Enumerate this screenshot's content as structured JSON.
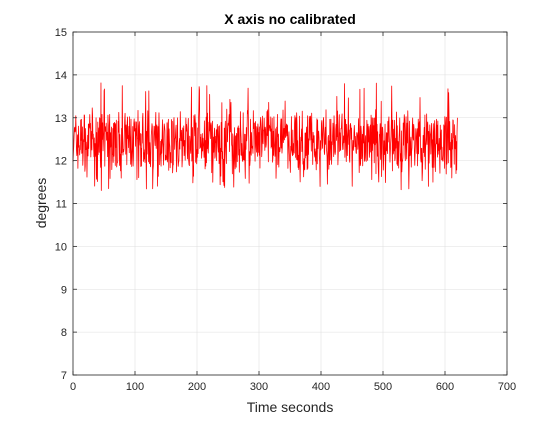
{
  "chart_data": {
    "type": "line",
    "title": "X axis no calibrated",
    "xlabel": "Time seconds",
    "ylabel": "degrees",
    "xlim": [
      0,
      700
    ],
    "ylim": [
      7,
      15
    ],
    "xticks": [
      0,
      100,
      200,
      300,
      400,
      500,
      600,
      700
    ],
    "yticks": [
      7,
      8,
      9,
      10,
      11,
      12,
      13,
      14,
      15
    ],
    "grid": true,
    "legend": "none",
    "series": [
      {
        "color": "#ff0000",
        "x_start": 0,
        "x_end": 620,
        "mean": 12.45,
        "min": 11.3,
        "max": 13.85,
        "x": [
          0,
          10,
          20,
          30,
          40,
          50,
          60,
          70,
          80,
          90,
          100,
          110,
          120,
          130,
          140,
          150,
          160,
          170,
          180,
          190,
          200,
          210,
          220,
          230,
          240,
          250,
          260,
          270,
          280,
          290,
          300,
          310,
          320,
          330,
          340,
          350,
          360,
          370,
          380,
          390,
          400,
          410,
          420,
          430,
          440,
          450,
          460,
          470,
          480,
          490,
          500,
          510,
          520,
          530,
          540,
          550,
          560,
          570,
          580,
          590,
          600,
          610,
          620
        ],
        "y": [
          12.4,
          11.6,
          13.5,
          11.4,
          12.9,
          11.4,
          13.1,
          11.5,
          13.6,
          11.4,
          12.8,
          11.5,
          13.7,
          11.5,
          13.2,
          11.6,
          13.8,
          11.4,
          13.0,
          11.5,
          13.7,
          11.4,
          12.9,
          11.3,
          13.6,
          11.5,
          13.8,
          11.4,
          13.1,
          11.5,
          13.8,
          11.4,
          13.0,
          11.5,
          13.6,
          11.6,
          13.7,
          11.4,
          12.9,
          11.5,
          13.5,
          11.4,
          13.2,
          11.5,
          13.4,
          11.4,
          12.9,
          11.5,
          13.6,
          11.4,
          13.2,
          11.5,
          13.5,
          11.3,
          12.9,
          11.4,
          13.5,
          11.5,
          13.0,
          11.4,
          13.4,
          11.6,
          13.0
        ]
      }
    ]
  }
}
